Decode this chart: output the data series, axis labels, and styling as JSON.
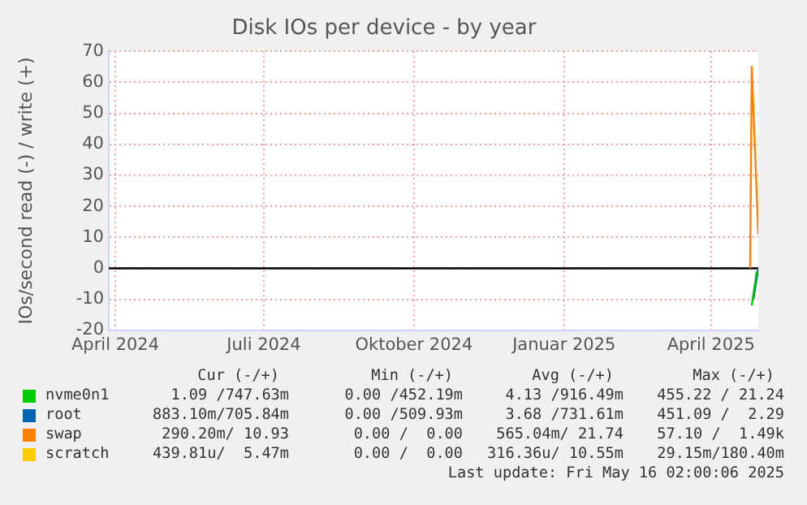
{
  "chart_data": {
    "type": "line",
    "title": "Disk IOs per device - by year",
    "ylabel": "IOs/second read (-) / write (+)",
    "xlim": [
      "2024-03-28",
      "2025-04-30"
    ],
    "xticks": [
      {
        "value": "2024-04-01",
        "label": "April 2024"
      },
      {
        "value": "2024-07-01",
        "label": "Juli 2024"
      },
      {
        "value": "2024-10-01",
        "label": "Oktober 2024"
      },
      {
        "value": "2025-01-01",
        "label": "Januar 2025"
      },
      {
        "value": "2025-04-01",
        "label": "April 2025"
      }
    ],
    "ylim": [
      -20,
      70
    ],
    "yticks": [
      -20,
      -10,
      0,
      10,
      20,
      30,
      40,
      50,
      60,
      70
    ],
    "grid": true,
    "legend": "bottom",
    "marker": "none",
    "line_style": "solid",
    "ref_lines": [
      {
        "axis": "y",
        "value": 0,
        "color": "#000000"
      }
    ],
    "series": [
      {
        "name": "nvme0n1",
        "color": "#00cc00",
        "x": [
          "2025-04-26",
          "2025-04-29"
        ],
        "values": [
          -12,
          -1
        ]
      },
      {
        "name": "root",
        "color": "#0066b3",
        "x": [
          "2025-04-27",
          "2025-04-30"
        ],
        "values": [
          -10,
          0
        ]
      },
      {
        "name": "swap",
        "color": "#ff8000",
        "x": [
          "2025-04-25",
          "2025-04-26",
          "2025-04-30"
        ],
        "values": [
          0,
          65,
          11
        ]
      },
      {
        "name": "scratch",
        "color": "#ffcc00"
      }
    ],
    "annotations": [
      "Cur (-/+)",
      "Min (-/+)",
      "Avg (-/+)",
      "Max (-/+)",
      "1.09 /747.63m",
      "0.00 /452.19m",
      "4.13 /916.49m",
      "455.22 / 21.24",
      "883.10m/705.84m",
      "0.00 /509.93m",
      "3.68 /731.61m",
      "451.09 /  2.29",
      "290.20m/ 10.93",
      "0.00 /  0.00",
      "565.04m/ 21.74",
      "57.10 /  1.49k",
      "439.81u/  5.47m",
      "0.00 /  0.00",
      "316.36u/ 10.55m",
      "29.15m/180.40m",
      "Last update: Fri May 16 02:00:06 2025"
    ]
  }
}
